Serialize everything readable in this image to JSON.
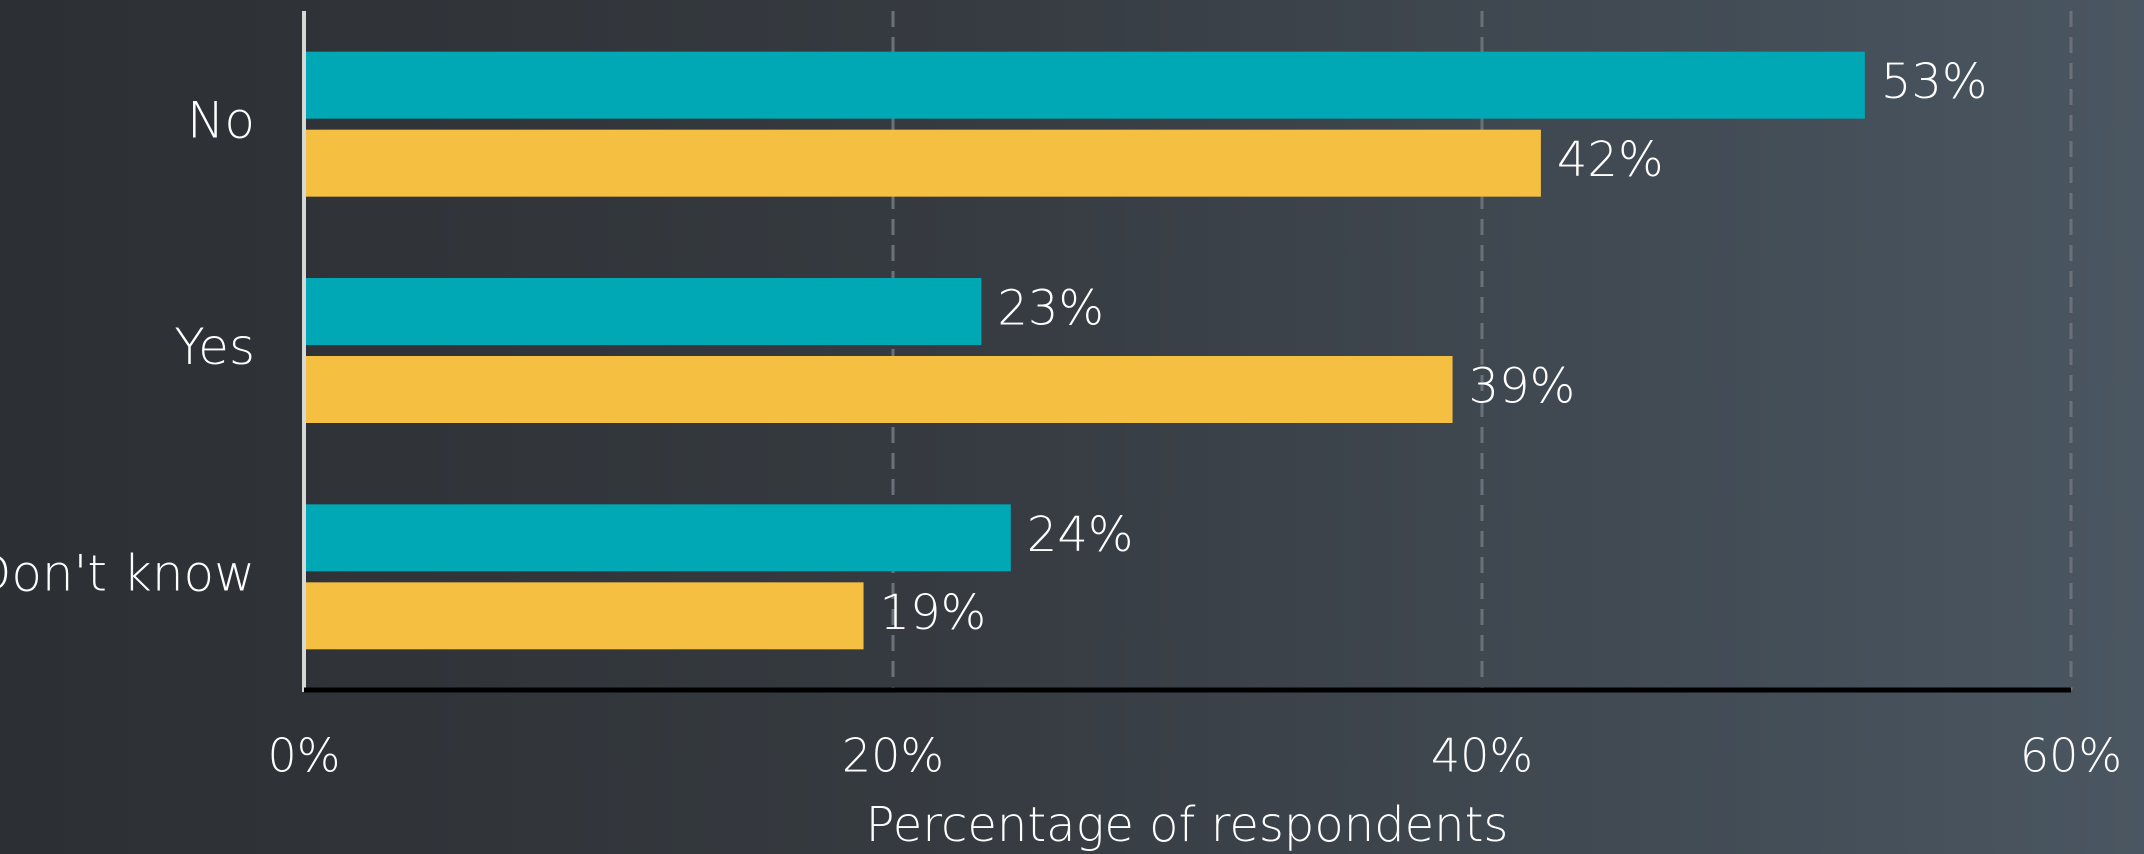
{
  "chart_data": {
    "type": "bar",
    "orientation": "horizontal",
    "categories": [
      "No",
      "Yes",
      "Don't know"
    ],
    "series": [
      {
        "color": "#00a8b5",
        "values": [
          53,
          23,
          24
        ],
        "value_labels": [
          "53%",
          "23%",
          "24%"
        ]
      },
      {
        "color": "#f5bf42",
        "values": [
          42,
          39,
          19
        ],
        "value_labels": [
          "42%",
          "39%",
          "19%"
        ]
      }
    ],
    "xlim": [
      0,
      60
    ],
    "xticks": [
      {
        "value": 0,
        "label": "0%"
      },
      {
        "value": 20,
        "label": "20%"
      },
      {
        "value": 40,
        "label": "40%"
      },
      {
        "value": 60,
        "label": "60%"
      }
    ],
    "xlabel": "Percentage of respondents",
    "grid": true
  }
}
